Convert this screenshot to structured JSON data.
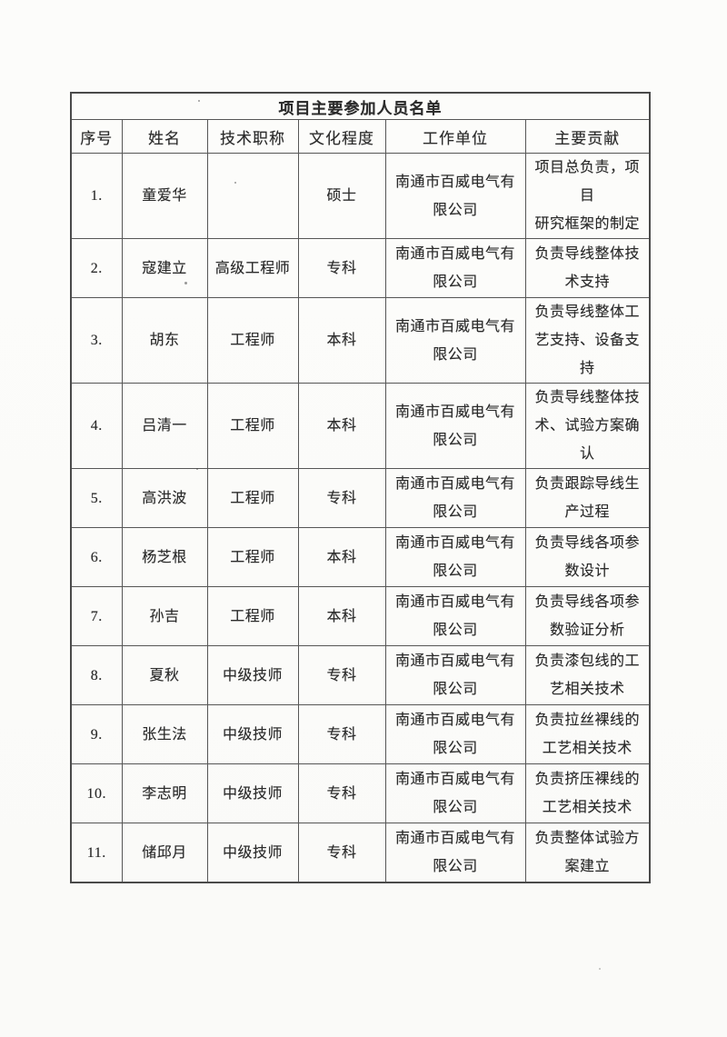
{
  "doc": {
    "title": "项目主要参加人员名单",
    "columns": [
      "序号",
      "姓名",
      "技术职称",
      "文化程度",
      "工作单位",
      "主要贡献"
    ],
    "rows": [
      {
        "no": "1.",
        "name": "童爱华",
        "job_title": "",
        "education": "硕士",
        "unit_lines": [
          "南通市百威电气有",
          "限公司"
        ],
        "contribution_lines": [
          "项目总负责，项目",
          "研究框架的制定"
        ]
      },
      {
        "no": "2.",
        "name": "寇建立",
        "job_title": "高级工程师",
        "education": "专科",
        "unit_lines": [
          "南通市百威电气有",
          "限公司"
        ],
        "contribution_lines": [
          "负责导线整体技",
          "术支持"
        ]
      },
      {
        "no": "3.",
        "name": "胡东",
        "job_title": "工程师",
        "education": "本科",
        "unit_lines": [
          "南通市百威电气有",
          "限公司"
        ],
        "contribution_lines": [
          "负责导线整体工",
          "艺支持、设备支持"
        ]
      },
      {
        "no": "4.",
        "name": "吕清一",
        "job_title": "工程师",
        "education": "本科",
        "unit_lines": [
          "南通市百威电气有",
          "限公司"
        ],
        "contribution_lines": [
          "负责导线整体技",
          "术、试验方案确认"
        ]
      },
      {
        "no": "5.",
        "name": "高洪波",
        "job_title": "工程师",
        "education": "专科",
        "unit_lines": [
          "南通市百威电气有",
          "限公司"
        ],
        "contribution_lines": [
          "负责跟踪导线生",
          "产过程"
        ]
      },
      {
        "no": "6.",
        "name": "杨芝根",
        "job_title": "工程师",
        "education": "本科",
        "unit_lines": [
          "南通市百威电气有",
          "限公司"
        ],
        "contribution_lines": [
          "负责导线各项参",
          "数设计"
        ]
      },
      {
        "no": "7.",
        "name": "孙吉",
        "job_title": "工程师",
        "education": "本科",
        "unit_lines": [
          "南通市百威电气有",
          "限公司"
        ],
        "contribution_lines": [
          "负责导线各项参",
          "数验证分析"
        ]
      },
      {
        "no": "8.",
        "name": "夏秋",
        "job_title": "中级技师",
        "education": "专科",
        "unit_lines": [
          "南通市百威电气有",
          "限公司"
        ],
        "contribution_lines": [
          "负责漆包线的工",
          "艺相关技术"
        ]
      },
      {
        "no": "9.",
        "name": "张生法",
        "job_title": "中级技师",
        "education": "专科",
        "unit_lines": [
          "南通市百威电气有",
          "限公司"
        ],
        "contribution_lines": [
          "负责拉丝裸线的",
          "工艺相关技术"
        ]
      },
      {
        "no": "10.",
        "name": "李志明",
        "job_title": "中级技师",
        "education": "专科",
        "unit_lines": [
          "南通市百威电气有",
          "限公司"
        ],
        "contribution_lines": [
          "负责挤压裸线的",
          "工艺相关技术"
        ]
      },
      {
        "no": "11.",
        "name": "储邱月",
        "job_title": "中级技师",
        "education": "专科",
        "unit_lines": [
          "南通市百威电气有",
          "限公司"
        ],
        "contribution_lines": [
          "负责整体试验方",
          "案建立"
        ]
      }
    ]
  }
}
